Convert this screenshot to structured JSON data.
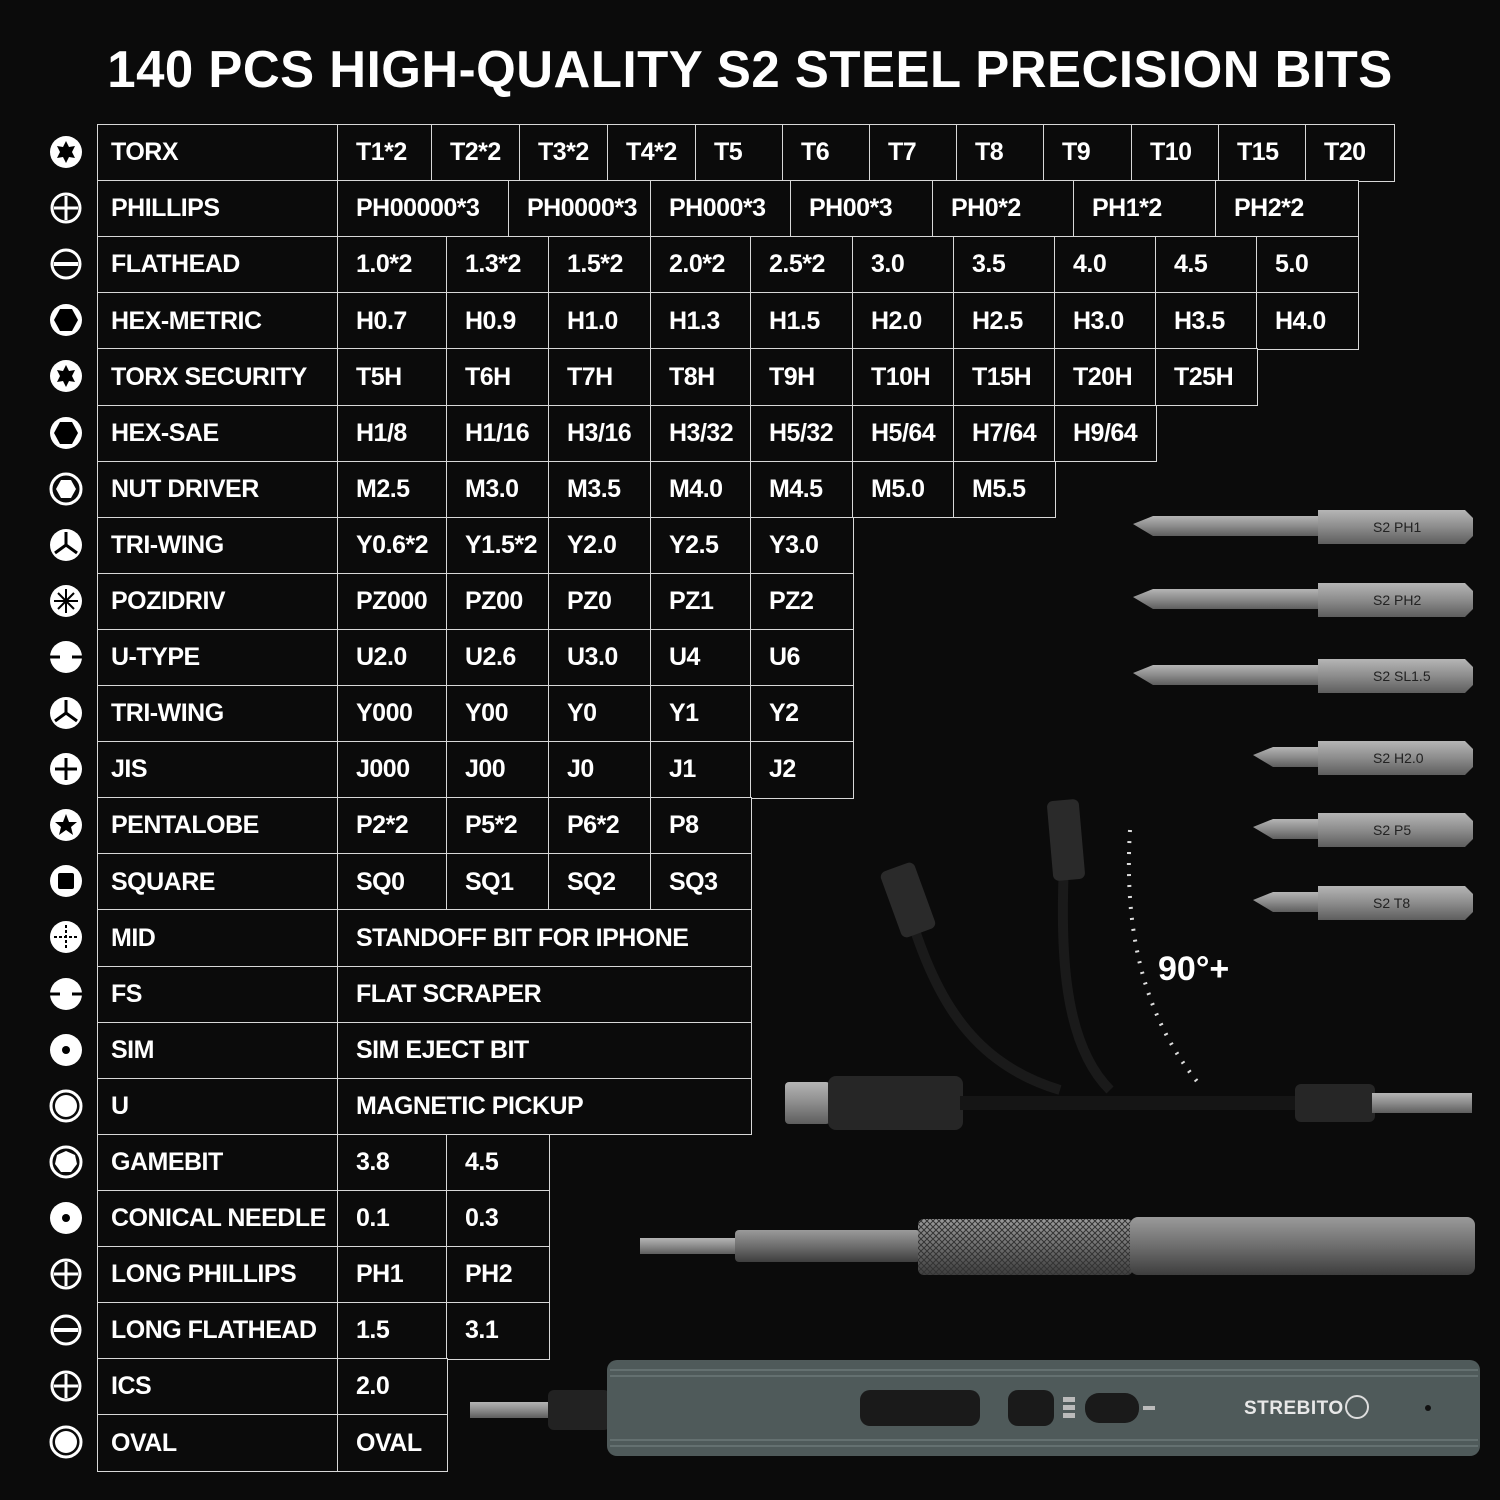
{
  "title": "140 PCS HIGH-QUALITY S2 STEEL PRECISION BITS",
  "rows": [
    {
      "icon": "torx",
      "label": "TORX",
      "cells": [
        "T1*2",
        "T2*2",
        "T3*2",
        "T4*2",
        "T5",
        "T6",
        "T7",
        "T8",
        "T9",
        "T10",
        "T15",
        "T20"
      ]
    },
    {
      "icon": "phillips",
      "label": "PHILLIPS",
      "cells": [
        "PH00000*3",
        "PH0000*3",
        "PH000*3",
        "PH00*3",
        "PH0*2",
        "PH1*2",
        "PH2*2"
      ]
    },
    {
      "icon": "flathead",
      "label": "FLATHEAD",
      "cells": [
        "1.0*2",
        "1.3*2",
        "1.5*2",
        "2.0*2",
        "2.5*2",
        "3.0",
        "3.5",
        "4.0",
        "4.5",
        "5.0"
      ]
    },
    {
      "icon": "hex",
      "label": "HEX-METRIC",
      "cells": [
        "H0.7",
        "H0.9",
        "H1.0",
        "H1.3",
        "H1.5",
        "H2.0",
        "H2.5",
        "H3.0",
        "H3.5",
        "H4.0"
      ]
    },
    {
      "icon": "torx",
      "label": "TORX SECURITY",
      "cells": [
        "T5H",
        "T6H",
        "T7H",
        "T8H",
        "T9H",
        "T10H",
        "T15H",
        "T20H",
        "T25H"
      ]
    },
    {
      "icon": "hex",
      "label": "HEX-SAE",
      "cells": [
        "H1/8",
        "H1/16",
        "H3/16",
        "H3/32",
        "H5/32",
        "H5/64",
        "H7/64",
        "H9/64"
      ]
    },
    {
      "icon": "nut",
      "label": "NUT DRIVER",
      "cells": [
        "M2.5",
        "M3.0",
        "M3.5",
        "M4.0",
        "M4.5",
        "M5.0",
        "M5.5"
      ]
    },
    {
      "icon": "triwing",
      "label": "TRI-WING",
      "cells": [
        "Y0.6*2",
        "Y1.5*2",
        "Y2.0",
        "Y2.5",
        "Y3.0"
      ]
    },
    {
      "icon": "pozidriv",
      "label": "POZIDRIV",
      "cells": [
        "PZ000",
        "PZ00",
        "PZ0",
        "PZ1",
        "PZ2"
      ]
    },
    {
      "icon": "utype",
      "label": "U-TYPE",
      "cells": [
        "U2.0",
        "U2.6",
        "U3.0",
        "U4",
        "U6"
      ]
    },
    {
      "icon": "triwing",
      "label": "TRI-WING",
      "cells": [
        "Y000",
        "Y00",
        "Y0",
        "Y1",
        "Y2"
      ]
    },
    {
      "icon": "jis",
      "label": "JIS",
      "cells": [
        "J000",
        "J00",
        "J0",
        "J1",
        "J2"
      ]
    },
    {
      "icon": "pentalobe",
      "label": "PENTALOBE",
      "cells": [
        "P2*2",
        "P5*2",
        "P6*2",
        "P8"
      ]
    },
    {
      "icon": "square",
      "label": "SQUARE",
      "cells": [
        "SQ0",
        "SQ1",
        "SQ2",
        "SQ3"
      ]
    },
    {
      "icon": "mid",
      "label": "MID",
      "cells": [
        "STANDOFF BIT FOR IPHONE"
      ]
    },
    {
      "icon": "utype",
      "label": "FS",
      "cells": [
        "FLAT SCRAPER"
      ]
    },
    {
      "icon": "dot",
      "label": "SIM",
      "cells": [
        "SIM EJECT BIT"
      ]
    },
    {
      "icon": "ring",
      "label": "U",
      "cells": [
        "MAGNETIC PICKUP"
      ]
    },
    {
      "icon": "gamebit",
      "label": "GAMEBIT",
      "cells": [
        "3.8",
        "4.5"
      ]
    },
    {
      "icon": "dot",
      "label": "CONICAL NEEDLE",
      "cells": [
        "0.1",
        "0.3"
      ]
    },
    {
      "icon": "phillips",
      "label": "LONG PHILLIPS",
      "cells": [
        "PH1",
        "PH2"
      ]
    },
    {
      "icon": "flathead",
      "label": "LONG FLATHEAD",
      "cells": [
        "1.5",
        "3.1"
      ]
    },
    {
      "icon": "phillips",
      "label": "ICS",
      "cells": [
        "2.0"
      ]
    },
    {
      "icon": "ring",
      "label": "OVAL",
      "cells": [
        "OVAL"
      ]
    }
  ],
  "bits": [
    "S2 PH1",
    "S2 PH2",
    "S2 SL1.5",
    "S2 H2.0",
    "S2 P5",
    "S2 T8"
  ],
  "angle_label": "90°+",
  "brand": "STREBITO",
  "colors": {
    "background": "#0b0b0b",
    "grid": "#d8d8d8",
    "driver_body": "#4f5a5a",
    "bit": "#8a8a8a"
  }
}
